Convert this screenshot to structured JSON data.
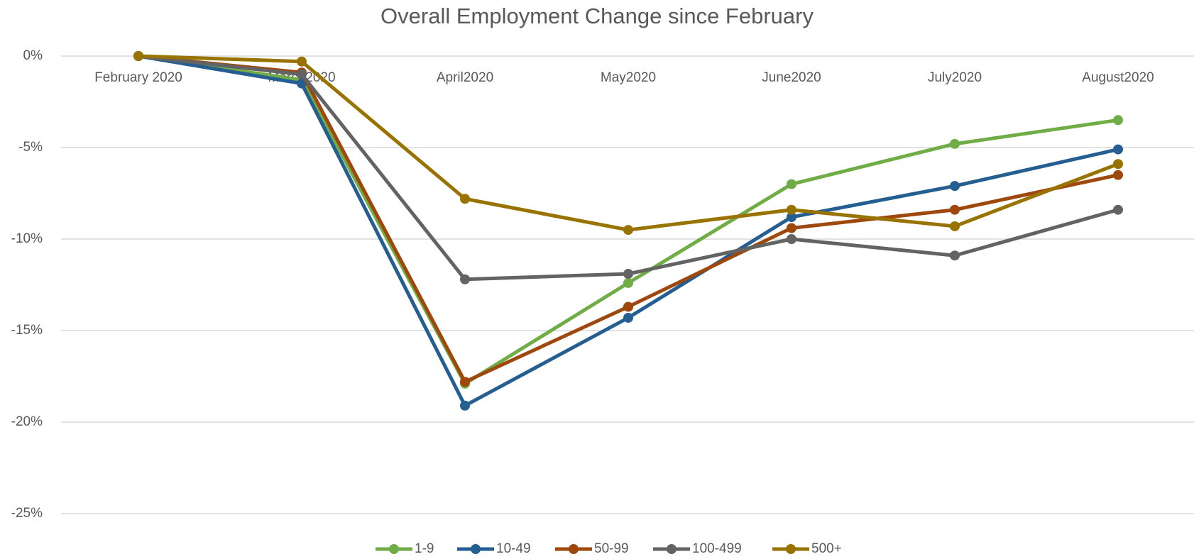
{
  "chart_data": {
    "type": "line",
    "title": "Overall Employment Change since February",
    "categories": [
      "February 2020",
      "March2020",
      "April2020",
      "May2020",
      "June2020",
      "July2020",
      "August2020"
    ],
    "series": [
      {
        "name": "1-9",
        "color": "#70ad47",
        "values": [
          0,
          -1.3,
          -17.9,
          -12.4,
          -7.0,
          -4.8,
          -3.5
        ]
      },
      {
        "name": "10-49",
        "color": "#255e91",
        "values": [
          0,
          -1.5,
          -19.1,
          -14.3,
          -8.8,
          -7.1,
          -5.1
        ]
      },
      {
        "name": "50-99",
        "color": "#9e480e",
        "values": [
          0,
          -0.9,
          -17.8,
          -13.7,
          -9.4,
          -8.4,
          -6.5
        ]
      },
      {
        "name": "100-499",
        "color": "#636363",
        "values": [
          0,
          -1.0,
          -12.2,
          -11.9,
          -10.0,
          -10.9,
          -8.4
        ]
      },
      {
        "name": "500+",
        "color": "#997300",
        "values": [
          0,
          -0.3,
          -7.8,
          -9.5,
          -8.4,
          -9.3,
          -5.9
        ]
      }
    ],
    "ylim": [
      -25,
      0
    ],
    "yticks": [
      {
        "value": 0,
        "label": "0%"
      },
      {
        "value": -5,
        "label": "-5%"
      },
      {
        "value": -10,
        "label": "-10%"
      },
      {
        "value": -15,
        "label": "-15%"
      },
      {
        "value": -20,
        "label": "-20%"
      },
      {
        "value": -25,
        "label": "-25%"
      }
    ],
    "grid": true,
    "legend": "bottom"
  }
}
